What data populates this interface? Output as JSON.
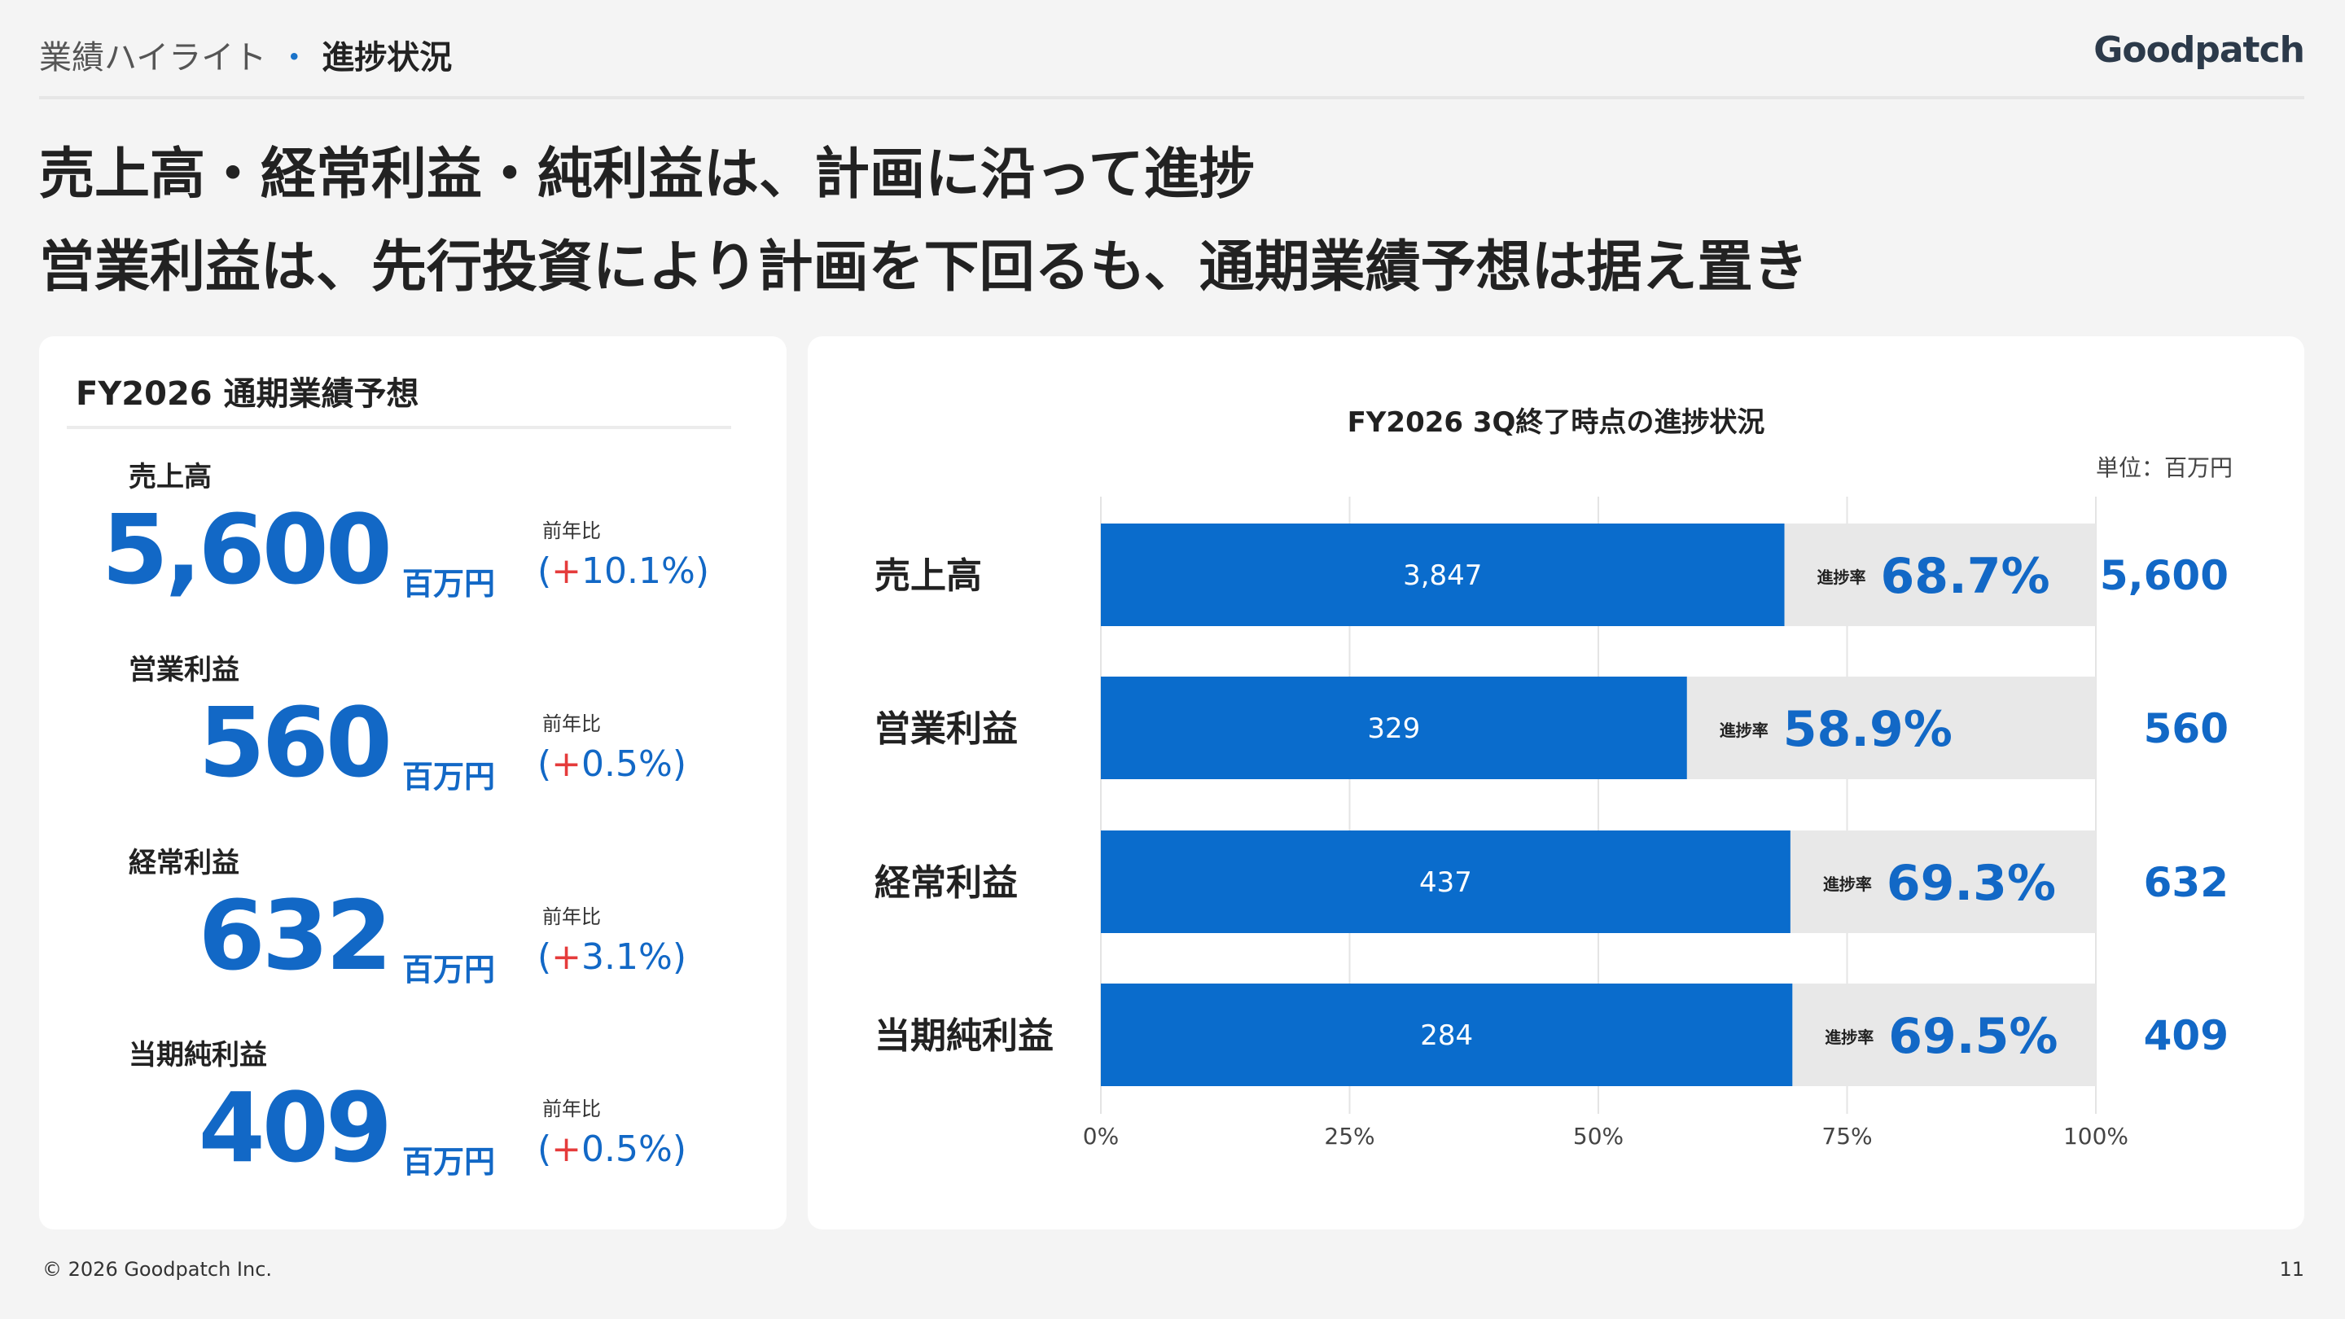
{
  "header": {
    "section": "業績ハイライト",
    "subsection": "進捗状況"
  },
  "logo": "Goodpatch",
  "title": {
    "line1": "売上高・経常利益・純利益は、計画に沿って進捗",
    "line2": "営業利益は、先行投資により計画を下回るも、通期業績予想は据え置き"
  },
  "forecast": {
    "title": "FY2026 通期業績予想",
    "unit": "百万円",
    "yoy_label": "前年比",
    "items": [
      {
        "name": "売上高",
        "value": "5,600",
        "yoy": "+10.1%"
      },
      {
        "name": "営業利益",
        "value": "560",
        "yoy": "+0.5%"
      },
      {
        "name": "経常利益",
        "value": "632",
        "yoy": "+3.1%"
      },
      {
        "name": "当期純利益",
        "value": "409",
        "yoy": "+0.5%"
      }
    ]
  },
  "chart_data": {
    "type": "bar",
    "orientation": "horizontal-stacked-100",
    "title": "FY2026 3Q終了時点の進捗状況",
    "unit_label": "単位：百万円",
    "progress_label": "進捗率",
    "categories": [
      "売上高",
      "営業利益",
      "経常利益",
      "当期純利益"
    ],
    "actual_values": [
      "3,847",
      "329",
      "437",
      "284"
    ],
    "progress_percent": [
      68.7,
      58.9,
      69.3,
      69.5
    ],
    "progress_text": [
      "68.7%",
      "58.9%",
      "69.3%",
      "69.5%"
    ],
    "plan_values": [
      "5,600",
      "560",
      "632",
      "409"
    ],
    "x_ticks": [
      "0%",
      "25%",
      "50%",
      "75%",
      "100%"
    ],
    "xlim": [
      0,
      100
    ],
    "grid": true,
    "colors": {
      "achieved": "#0a6ccc",
      "remaining": "#e8e8e8",
      "accent": "#1268c6"
    }
  },
  "footer": {
    "copyright": "© 2026 Goodpatch Inc.",
    "page": "11"
  }
}
